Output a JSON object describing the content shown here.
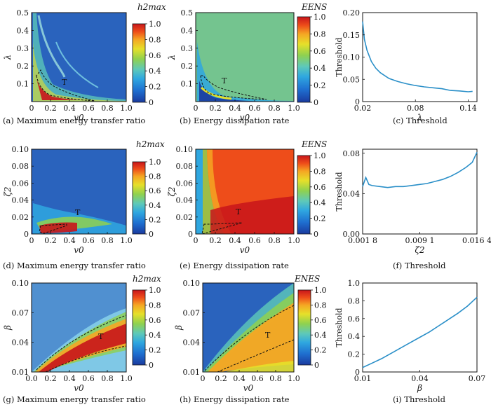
{
  "figure": {
    "captions": {
      "a": "(a) Maximum energy transfer ratio",
      "b": "(b) Energy dissipation rate",
      "c": "(c) Threshold",
      "d": "(d) Maximum energy transfer ratio",
      "e": "(e) Energy dissipation rate",
      "f": "(f) Threshold",
      "g": "(g) Maximum energy transfer ratio",
      "h": "(h) Energy dissipation rate",
      "i": "(i) Threshold"
    }
  },
  "chart_data": [
    {
      "id": "a",
      "type": "heatmap",
      "xlabel": "v0",
      "ylabel": "λ",
      "xticks": [
        "0",
        "0.2",
        "0.4",
        "0.6",
        "0.8",
        "1.0"
      ],
      "xlim": [
        0,
        1.0
      ],
      "yticks": [
        "0.1",
        "0.2",
        "0.3",
        "0.4",
        "0.5"
      ],
      "ylim": [
        0,
        0.5
      ],
      "colorbar": {
        "label": "h2max",
        "range": [
          0,
          1.0
        ],
        "ticks": [
          "0",
          "0.2",
          "0.4",
          "0.6",
          "0.8",
          "1.0"
        ]
      },
      "annotation": "T",
      "region_T": [
        [
          0.04,
          0.12
        ],
        [
          0.05,
          0.06
        ],
        [
          0.08,
          0.03
        ],
        [
          0.18,
          0.02
        ],
        [
          0.4,
          0.01
        ],
        [
          0.2,
          0.04
        ],
        [
          0.1,
          0.08
        ]
      ],
      "background_value": 0.1
    },
    {
      "id": "b",
      "type": "heatmap",
      "xlabel": "v0",
      "ylabel": "λ",
      "xticks": [
        "0",
        "0.2",
        "0.4",
        "0.6",
        "0.8",
        "1.0"
      ],
      "xlim": [
        0,
        1.0
      ],
      "yticks": [
        "0.1",
        "0.2",
        "0.3",
        "0.4",
        "0.5"
      ],
      "ylim": [
        0,
        0.5
      ],
      "colorbar": {
        "label": "EENS",
        "range": [
          0,
          1.0
        ],
        "ticks": [
          "0",
          "0.2",
          "0.4",
          "0.6",
          "0.8",
          "1.0"
        ]
      },
      "annotation": "T",
      "region_T": [
        [
          0.06,
          0.14
        ],
        [
          0.05,
          0.06
        ],
        [
          0.09,
          0.03
        ],
        [
          0.2,
          0.02
        ],
        [
          0.45,
          0.015
        ],
        [
          0.25,
          0.04
        ],
        [
          0.12,
          0.08
        ]
      ],
      "background_value": 0.5
    },
    {
      "id": "c",
      "type": "line",
      "xlabel": "λ",
      "ylabel": "Threshold",
      "xticks": [
        "0.02",
        "0.08",
        "0.14"
      ],
      "xlim": [
        0.02,
        0.15
      ],
      "yticks": [
        "0",
        "0.05",
        "0.10",
        "0.15",
        "0.20"
      ],
      "ylim": [
        0,
        0.2
      ],
      "series": [
        {
          "name": "Threshold",
          "x": [
            0.02,
            0.022,
            0.025,
            0.03,
            0.035,
            0.04,
            0.05,
            0.06,
            0.07,
            0.08,
            0.09,
            0.1,
            0.11,
            0.12,
            0.13,
            0.14,
            0.145
          ],
          "y": [
            0.18,
            0.14,
            0.115,
            0.09,
            0.075,
            0.065,
            0.052,
            0.045,
            0.04,
            0.036,
            0.033,
            0.031,
            0.029,
            0.025,
            0.024,
            0.022,
            0.023
          ]
        }
      ]
    },
    {
      "id": "d",
      "type": "heatmap",
      "xlabel": "v0",
      "ylabel": "ζ2",
      "xticks": [
        "0",
        "0.2",
        "0.4",
        "0.6",
        "0.8",
        "1.0"
      ],
      "xlim": [
        0,
        1.0
      ],
      "yticks": [
        "0",
        "0.02",
        "0.04",
        "0.06",
        "0.08",
        "0.10"
      ],
      "ylim": [
        0,
        0.1
      ],
      "colorbar": {
        "label": "h2max",
        "range": [
          0,
          1.0
        ],
        "ticks": [
          "0",
          "0.2",
          "0.4",
          "0.6",
          "0.8",
          "1.0"
        ]
      },
      "annotation": "T",
      "region_T": [
        [
          0.08,
          0.018
        ],
        [
          0.06,
          0.008
        ],
        [
          0.12,
          0.004
        ],
        [
          0.35,
          0.013
        ],
        [
          0.35,
          0.018
        ]
      ],
      "background_value": 0.1
    },
    {
      "id": "e",
      "type": "heatmap",
      "xlabel": "v0",
      "ylabel": "ζ2",
      "xticks": [
        "0",
        "0.2",
        "0.4",
        "0.6",
        "0.8",
        "1.0"
      ],
      "xlim": [
        0,
        1.0
      ],
      "yticks": [
        "0",
        "0.02",
        "0.04",
        "0.06",
        "0.08",
        "0.10"
      ],
      "ylim": [
        0,
        0.1
      ],
      "colorbar": {
        "label": "EENS",
        "range": [
          0,
          1.0
        ],
        "ticks": [
          "0",
          "0.2",
          "0.4",
          "0.6",
          "0.8",
          "1.0"
        ]
      },
      "annotation": "T",
      "region_T": [
        [
          0.1,
          0.018
        ],
        [
          0.08,
          0.004
        ],
        [
          0.45,
          0.017
        ],
        [
          0.35,
          0.018
        ]
      ],
      "background_value": 0.9
    },
    {
      "id": "f",
      "type": "line",
      "xlabel": "ζ2",
      "ylabel": "Threshold",
      "xticks": [
        "0.001 8",
        "0.009 1",
        "0.016 4"
      ],
      "xlim": [
        0.0018,
        0.0164
      ],
      "yticks": [
        "0.00",
        "0.04",
        "0.08"
      ],
      "ylim": [
        0,
        0.084
      ],
      "series": [
        {
          "name": "Threshold",
          "x": [
            0.0018,
            0.0022,
            0.0026,
            0.003,
            0.004,
            0.005,
            0.006,
            0.007,
            0.008,
            0.009,
            0.01,
            0.011,
            0.012,
            0.013,
            0.014,
            0.015,
            0.0158,
            0.0164
          ],
          "y": [
            0.047,
            0.056,
            0.049,
            0.048,
            0.047,
            0.046,
            0.047,
            0.047,
            0.048,
            0.049,
            0.05,
            0.052,
            0.054,
            0.057,
            0.061,
            0.066,
            0.071,
            0.081
          ]
        }
      ]
    },
    {
      "id": "g",
      "type": "heatmap",
      "xlabel": "v0",
      "ylabel": "β",
      "xticks": [
        "0.0",
        "0.2",
        "0.4",
        "0.6",
        "0.8",
        "1.0"
      ],
      "xlim": [
        0,
        1.0
      ],
      "yticks": [
        "0.01",
        "0.04",
        "0.07",
        "0.10"
      ],
      "ylim": [
        0.01,
        0.1
      ],
      "colorbar": {
        "label": "h2max",
        "range": [
          0,
          1.0
        ],
        "ticks": [
          "0",
          "0.2",
          "0.4",
          "0.6",
          "0.8",
          "1.0"
        ]
      },
      "annotation": "T",
      "boundary_upper": [
        [
          0.05,
          0.012
        ],
        [
          0.3,
          0.03
        ],
        [
          0.6,
          0.05
        ],
        [
          1.0,
          0.08
        ]
      ],
      "boundary_lower": [
        [
          0.1,
          0.01
        ],
        [
          0.4,
          0.022
        ],
        [
          0.7,
          0.033
        ],
        [
          1.0,
          0.043
        ]
      ],
      "background_value": 0.35
    },
    {
      "id": "h",
      "type": "heatmap",
      "xlabel": "v0",
      "ylabel": "β",
      "xticks": [
        "0",
        "0.2",
        "0.4",
        "0.6",
        "0.8",
        "1.0"
      ],
      "xlim": [
        0,
        1.0
      ],
      "yticks": [
        "0.01",
        "0.04",
        "0.07",
        "0.10"
      ],
      "ylim": [
        0.01,
        0.1
      ],
      "colorbar": {
        "label": "ENES",
        "range": [
          0,
          1.0
        ],
        "ticks": [
          "0",
          "0.2",
          "0.4",
          "0.6",
          "0.8",
          "1.0"
        ]
      },
      "annotation": "T",
      "boundary_upper": [
        [
          0.05,
          0.011
        ],
        [
          0.3,
          0.035
        ],
        [
          0.6,
          0.055
        ],
        [
          1.0,
          0.077
        ]
      ],
      "boundary_lower": [
        [
          0.15,
          0.01
        ],
        [
          0.4,
          0.02
        ],
        [
          0.7,
          0.03
        ],
        [
          1.0,
          0.04
        ]
      ],
      "background_value": 0.1
    },
    {
      "id": "i",
      "type": "line",
      "xlabel": "β",
      "ylabel": "Threshold",
      "xticks": [
        "0.01",
        "0.04",
        "0.07"
      ],
      "xlim": [
        0.01,
        0.07
      ],
      "yticks": [
        "0",
        "0.2",
        "0.4",
        "0.6",
        "0.8",
        "1.0"
      ],
      "ylim": [
        0,
        1.0
      ],
      "series": [
        {
          "name": "Threshold",
          "x": [
            0.01,
            0.015,
            0.02,
            0.025,
            0.03,
            0.035,
            0.04,
            0.045,
            0.05,
            0.055,
            0.06,
            0.065,
            0.07
          ],
          "y": [
            0.05,
            0.1,
            0.15,
            0.21,
            0.27,
            0.33,
            0.39,
            0.45,
            0.52,
            0.59,
            0.66,
            0.74,
            0.84
          ]
        }
      ]
    }
  ]
}
